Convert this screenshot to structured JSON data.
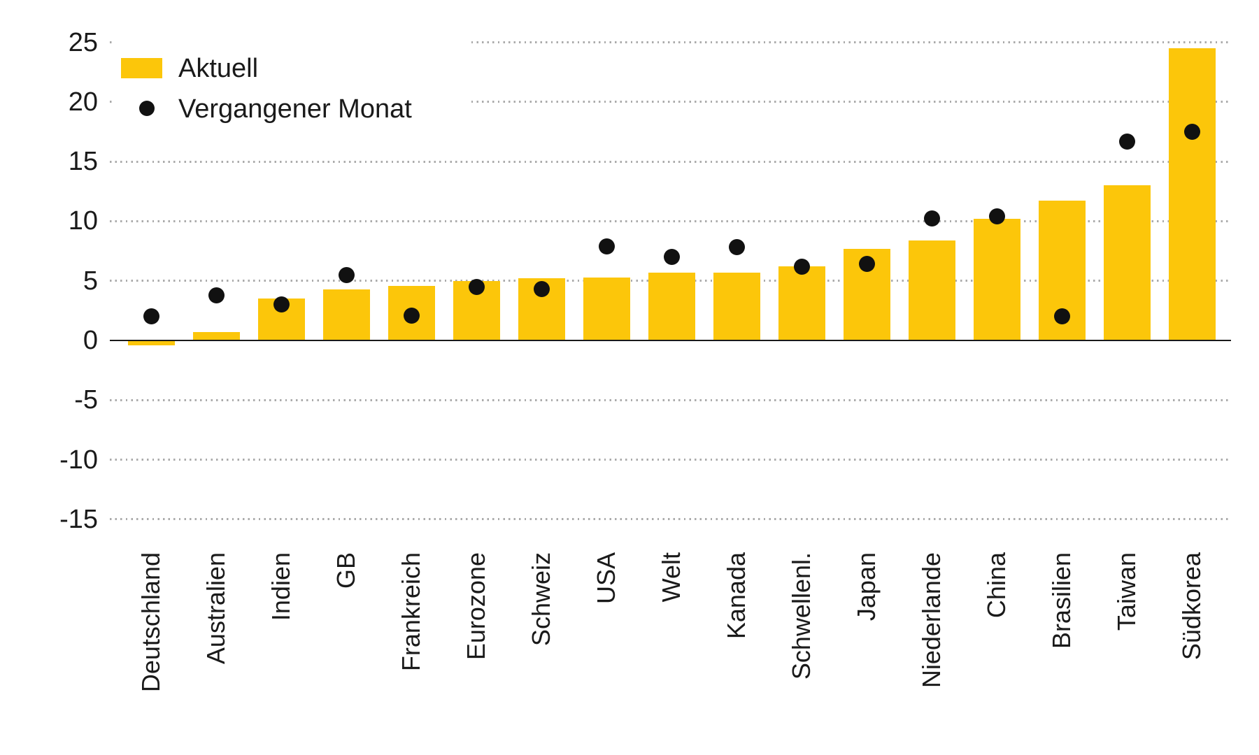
{
  "legend": {
    "aktuell": "Aktuell",
    "vergangener_monat": "Vergangener Monat"
  },
  "colors": {
    "bar": "#fcc60a",
    "dot": "#111111",
    "gridline": "#ababab",
    "axis": "#1a1a1a",
    "text": "#1a1a1a",
    "legend_bg": "#ffffff"
  },
  "chart_data": {
    "type": "bar",
    "title": "",
    "xlabel": "",
    "ylabel": "",
    "categories": [
      "Deutschland",
      "Australien",
      "Indien",
      "GB",
      "Frankreich",
      "Eurozone",
      "Schweiz",
      "USA",
      "Welt",
      "Kanada",
      "Schwellenl.",
      "Japan",
      "Niederlande",
      "China",
      "Brasilien",
      "Taiwan",
      "Südkorea"
    ],
    "series": [
      {
        "name": "Aktuell",
        "type": "bar",
        "color": "#fcc60a",
        "values": [
          -0.4,
          0.7,
          3.5,
          4.3,
          4.6,
          5.0,
          5.2,
          5.3,
          5.7,
          5.7,
          6.2,
          7.7,
          8.4,
          10.2,
          11.7,
          13.0,
          24.5
        ]
      },
      {
        "name": "Vergangener Monat",
        "type": "scatter",
        "color": "#111111",
        "values": [
          2.0,
          3.8,
          3.0,
          5.5,
          2.1,
          4.5,
          4.3,
          7.9,
          7.0,
          7.8,
          6.2,
          6.4,
          10.2,
          10.4,
          2.0,
          16.7,
          17.5
        ]
      }
    ],
    "yticks": [
      25,
      20,
      15,
      10,
      5,
      0,
      -5,
      -10,
      -15
    ],
    "ylim": [
      -17.5,
      26.5
    ],
    "grid": "horizontal-dotted",
    "zero_axis": "solid",
    "legend_position": "top-left",
    "x_tick_label_rotation": 90
  }
}
